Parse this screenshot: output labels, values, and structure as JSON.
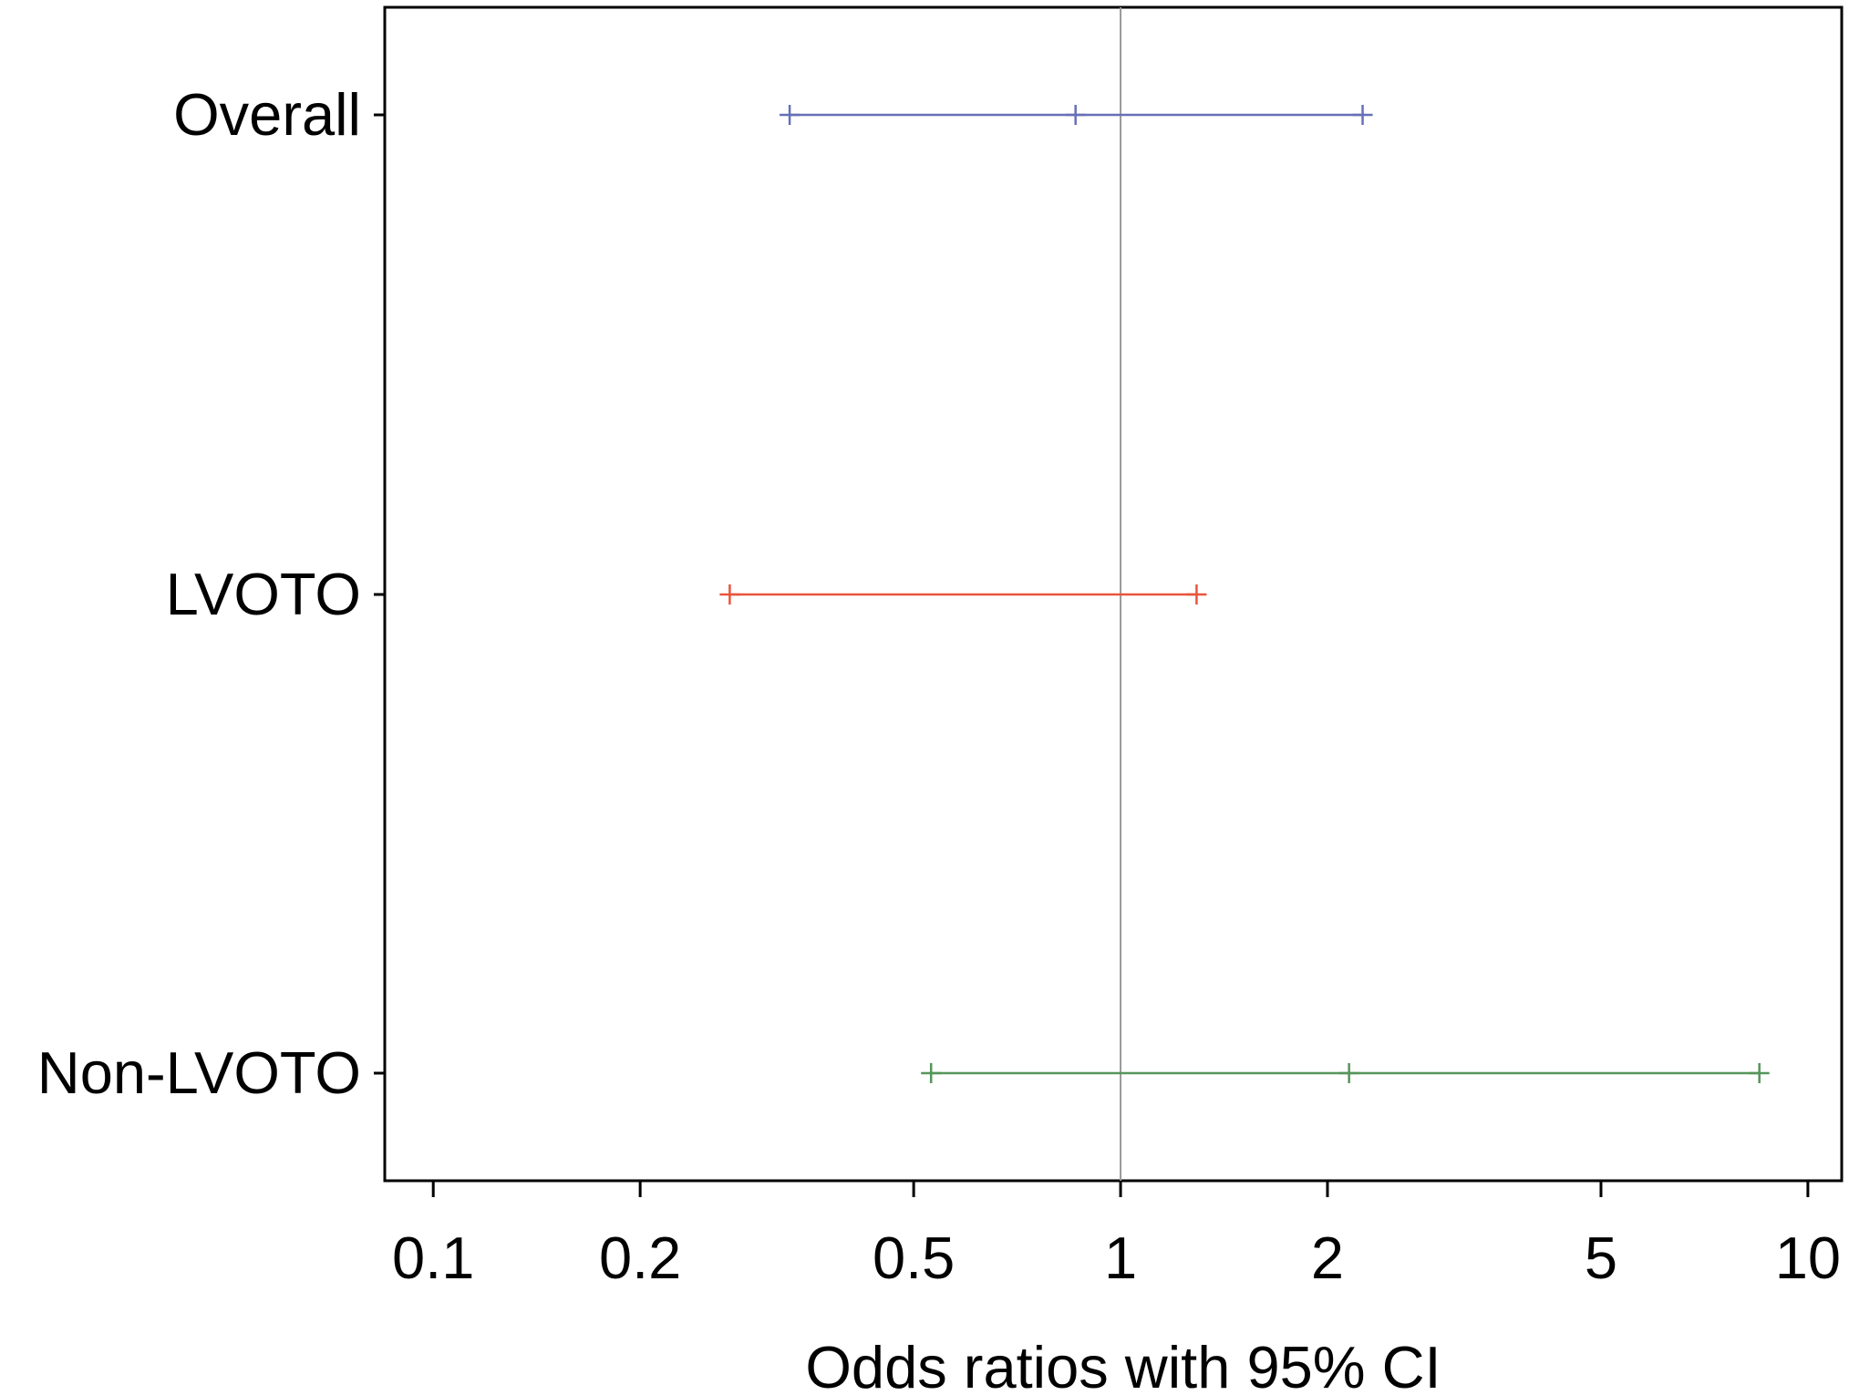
{
  "chart_data": {
    "type": "forest",
    "xlabel": "Odds ratios with 95% CI",
    "xscale": "log",
    "xlim": [
      0.085,
      11.2
    ],
    "xticks": [
      0.1,
      0.2,
      0.5,
      1,
      2,
      5,
      10
    ],
    "xtick_labels": [
      "0.1",
      "0.2",
      "0.5",
      "1",
      "2",
      "5",
      "10"
    ],
    "reference_line": 1,
    "reference_color": "#999999",
    "rows": [
      {
        "label": "Overall",
        "lower": 0.33,
        "estimate": 0.86,
        "upper": 2.25,
        "color": "#6670b8"
      },
      {
        "label": "LVOTO",
        "lower": 0.27,
        "estimate": null,
        "upper": 1.29,
        "color": "#e8553c"
      },
      {
        "label": "Non-LVOTO",
        "lower": 0.53,
        "estimate": 2.15,
        "upper": 8.5,
        "color": "#55955a"
      }
    ]
  }
}
